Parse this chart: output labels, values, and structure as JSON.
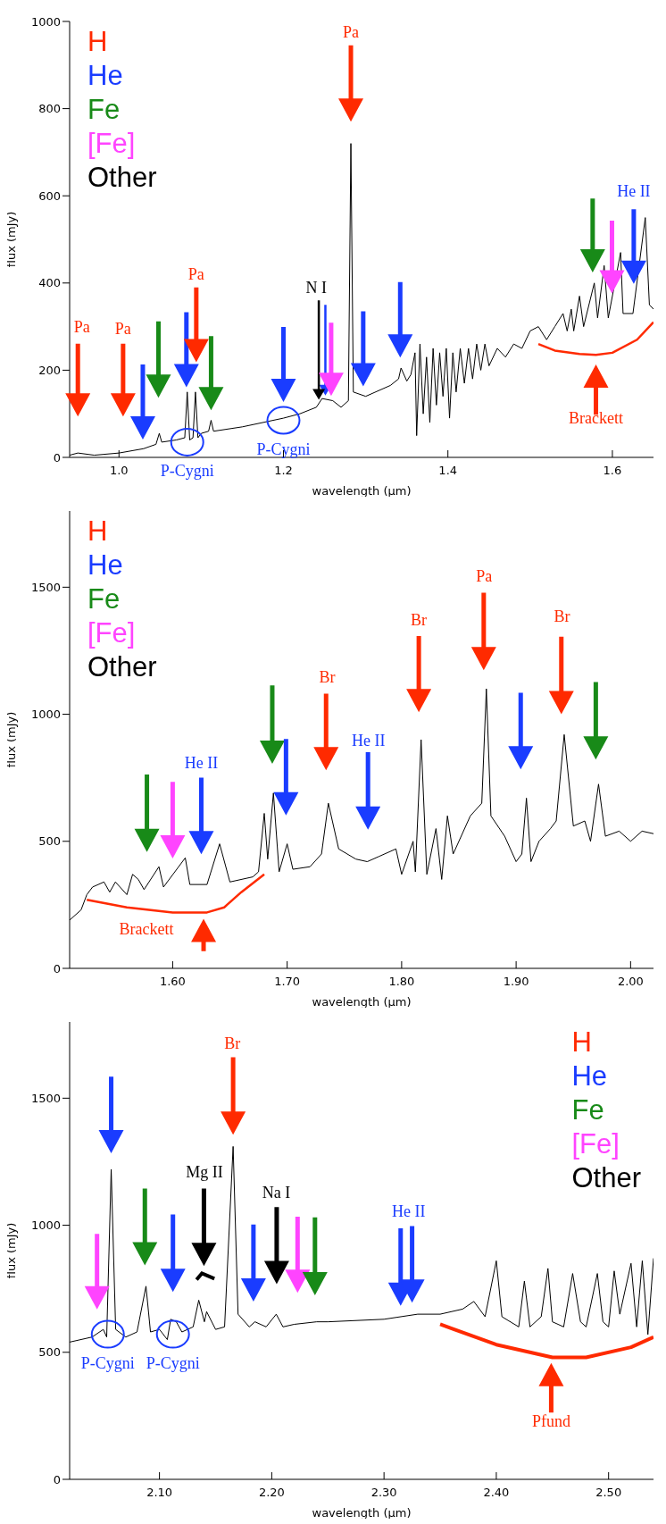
{
  "chart_data": [
    {
      "type": "line",
      "xlabel": "wavelength (μm)",
      "ylabel": "flux (mJy)",
      "xlim": [
        0.94,
        1.65
      ],
      "xticks": [
        {
          "value": 1.0,
          "label": "1.0"
        },
        {
          "value": 1.2,
          "label": "1.2"
        },
        {
          "value": 1.4,
          "label": "1.4"
        },
        {
          "value": 1.6,
          "label": "1.6"
        }
      ],
      "ylim": [
        0,
        1000
      ],
      "yticks": [
        0,
        200,
        400,
        600,
        800,
        1000
      ],
      "series": [
        {
          "color": "#000000",
          "x": [
            0.94,
            0.95,
            0.97,
            1.0,
            1.03,
            1.045,
            1.049,
            1.052,
            1.07,
            1.08,
            1.083,
            1.086,
            1.09,
            1.093,
            1.096,
            1.1,
            1.109,
            1.112,
            1.115,
            1.15,
            1.2,
            1.22,
            1.24,
            1.247,
            1.26,
            1.27,
            1.279,
            1.282,
            1.285,
            1.3,
            1.33,
            1.34,
            1.343,
            1.35,
            1.355,
            1.36,
            1.362,
            1.366,
            1.37,
            1.374,
            1.378,
            1.382,
            1.386,
            1.39,
            1.394,
            1.398,
            1.402,
            1.406,
            1.41,
            1.415,
            1.42,
            1.425,
            1.43,
            1.435,
            1.44,
            1.445,
            1.45,
            1.46,
            1.47,
            1.48,
            1.49,
            1.5,
            1.51,
            1.52,
            1.53,
            1.54,
            1.545,
            1.55,
            1.553,
            1.56,
            1.565,
            1.578,
            1.582,
            1.59,
            1.595,
            1.61,
            1.613,
            1.625,
            1.64,
            1.645,
            1.65
          ],
          "values": [
            5,
            10,
            5,
            10,
            20,
            30,
            55,
            35,
            40,
            45,
            150,
            40,
            45,
            150,
            45,
            55,
            60,
            85,
            60,
            70,
            90,
            100,
            115,
            135,
            130,
            115,
            130,
            720,
            150,
            140,
            165,
            180,
            205,
            175,
            190,
            240,
            50,
            260,
            100,
            230,
            80,
            250,
            120,
            240,
            140,
            250,
            90,
            240,
            150,
            250,
            170,
            250,
            180,
            260,
            200,
            260,
            210,
            250,
            230,
            260,
            250,
            290,
            300,
            270,
            300,
            330,
            290,
            340,
            290,
            370,
            300,
            400,
            320,
            440,
            320,
            470,
            330,
            330,
            550,
            350,
            340
          ]
        },
        {
          "color": "#ff2a00",
          "x": [
            1.51,
            1.53,
            1.56,
            1.58,
            1.6,
            1.63,
            1.65
          ],
          "values": [
            260,
            245,
            237,
            235,
            240,
            270,
            310
          ]
        }
      ],
      "annotations": [
        "H",
        "He",
        "Fe",
        "[Fe]",
        "Other",
        "Pa",
        "Pa",
        "Pa",
        "N I",
        "Pa",
        "He II",
        "Brackett",
        "P-Cygni",
        "P-Cygni"
      ]
    },
    {
      "type": "line",
      "xlabel": "wavelength (μm)",
      "ylabel": "flux (mJy)",
      "xlim": [
        1.51,
        2.02
      ],
      "xticks": [
        {
          "value": 1.6,
          "label": "1.60"
        },
        {
          "value": 1.7,
          "label": "1.70"
        },
        {
          "value": 1.8,
          "label": "1.80"
        },
        {
          "value": 1.9,
          "label": "1.90"
        },
        {
          "value": 2.0,
          "label": "2.00"
        }
      ],
      "ylim": [
        0,
        1800
      ],
      "yticks": [
        0,
        500,
        1000,
        1500
      ],
      "series": [
        {
          "color": "#000000",
          "x": [
            1.51,
            1.52,
            1.525,
            1.53,
            1.54,
            1.545,
            1.55,
            1.56,
            1.565,
            1.57,
            1.575,
            1.588,
            1.592,
            1.611,
            1.615,
            1.63,
            1.641,
            1.65,
            1.67,
            1.675,
            1.68,
            1.683,
            1.688,
            1.693,
            1.7,
            1.705,
            1.72,
            1.73,
            1.736,
            1.745,
            1.76,
            1.77,
            1.78,
            1.795,
            1.8,
            1.81,
            1.812,
            1.817,
            1.822,
            1.83,
            1.835,
            1.84,
            1.845,
            1.86,
            1.87,
            1.874,
            1.878,
            1.89,
            1.9,
            1.905,
            1.909,
            1.913,
            1.92,
            1.93,
            1.935,
            1.942,
            1.95,
            1.96,
            1.965,
            1.972,
            1.978,
            1.99,
            2.0,
            2.01,
            2.02
          ],
          "values": [
            190,
            230,
            290,
            320,
            340,
            300,
            340,
            290,
            370,
            350,
            310,
            400,
            320,
            435,
            330,
            330,
            490,
            340,
            360,
            380,
            610,
            430,
            690,
            380,
            490,
            390,
            400,
            450,
            650,
            470,
            430,
            420,
            440,
            470,
            370,
            500,
            380,
            900,
            370,
            550,
            350,
            600,
            450,
            600,
            650,
            1100,
            600,
            520,
            420,
            450,
            670,
            420,
            500,
            550,
            580,
            920,
            560,
            580,
            500,
            725,
            520,
            540,
            500,
            540,
            530
          ]
        },
        {
          "color": "#ff2a00",
          "x": [
            1.525,
            1.56,
            1.6,
            1.63,
            1.645,
            1.66,
            1.68
          ],
          "values": [
            270,
            240,
            220,
            220,
            240,
            300,
            370
          ]
        }
      ],
      "annotations": [
        "H",
        "He",
        "Fe",
        "[Fe]",
        "Other",
        "He II",
        "Br",
        "He II",
        "Br",
        "Pa",
        "Br",
        "Brackett"
      ]
    },
    {
      "type": "line",
      "xlabel": "wavelength (μm)",
      "ylabel": "flux (mJy)",
      "xlim": [
        2.02,
        2.54
      ],
      "xticks": [
        {
          "value": 2.1,
          "label": "2.10"
        },
        {
          "value": 2.2,
          "label": "2.20"
        },
        {
          "value": 2.3,
          "label": "2.30"
        },
        {
          "value": 2.4,
          "label": "2.40"
        },
        {
          "value": 2.5,
          "label": "2.50"
        }
      ],
      "ylim": [
        0,
        1800
      ],
      "yticks": [
        0,
        500,
        1000,
        1500
      ],
      "series": [
        {
          "color": "#000000",
          "x": [
            2.02,
            2.04,
            2.05,
            2.053,
            2.057,
            2.061,
            2.07,
            2.08,
            2.088,
            2.092,
            2.1,
            2.107,
            2.11,
            2.115,
            2.12,
            2.13,
            2.135,
            2.14,
            2.142,
            2.15,
            2.158,
            2.1656,
            2.17,
            2.18,
            2.185,
            2.195,
            2.204,
            2.21,
            2.22,
            2.24,
            2.25,
            2.3,
            2.33,
            2.35,
            2.37,
            2.38,
            2.39,
            2.4,
            2.405,
            2.42,
            2.425,
            2.43,
            2.44,
            2.446,
            2.45,
            2.46,
            2.468,
            2.475,
            2.48,
            2.49,
            2.495,
            2.5,
            2.505,
            2.51,
            2.52,
            2.525,
            2.53,
            2.535,
            2.54
          ],
          "values": [
            540,
            560,
            590,
            560,
            1220,
            590,
            560,
            580,
            760,
            580,
            590,
            550,
            630,
            620,
            580,
            600,
            705,
            620,
            660,
            590,
            600,
            1310,
            650,
            600,
            620,
            600,
            650,
            600,
            610,
            620,
            620,
            630,
            650,
            650,
            670,
            700,
            640,
            860,
            640,
            600,
            780,
            600,
            640,
            830,
            620,
            600,
            810,
            620,
            600,
            810,
            620,
            600,
            820,
            650,
            850,
            600,
            860,
            570,
            870
          ]
        },
        {
          "color": "#ff2a00",
          "x": [
            2.35,
            2.4,
            2.45,
            2.48,
            2.52,
            2.54
          ],
          "values": [
            610,
            530,
            480,
            480,
            520,
            560
          ]
        }
      ],
      "annotations": [
        "H",
        "He",
        "Fe",
        "[Fe]",
        "Other",
        "Br",
        "Mg II",
        "Na I",
        "He II",
        "Pfund",
        "P-Cygni",
        "P-Cygni"
      ]
    }
  ]
}
